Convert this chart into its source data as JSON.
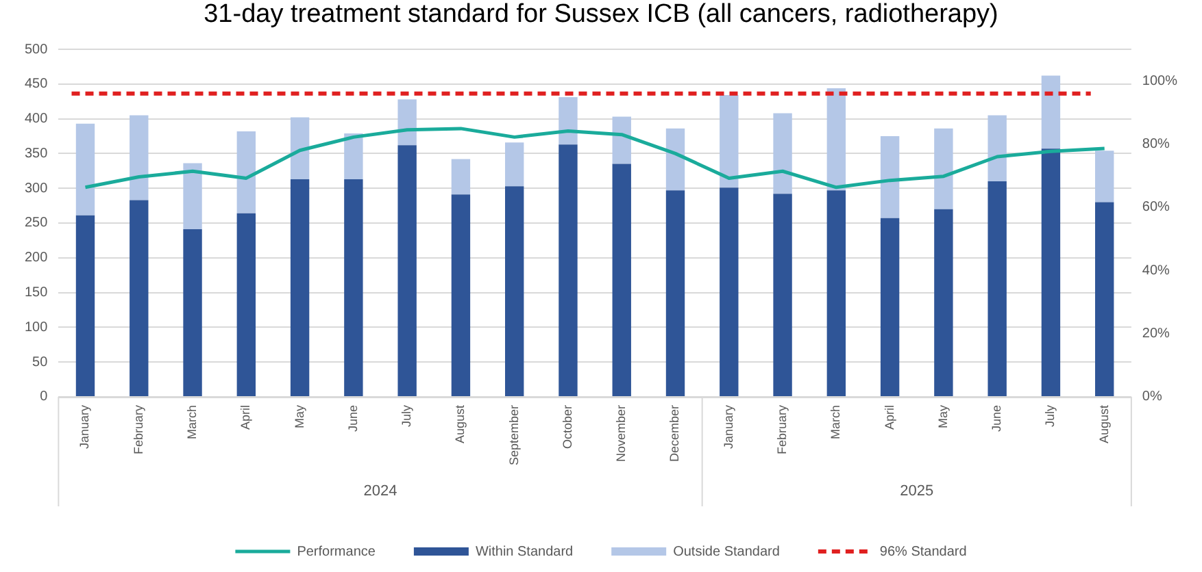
{
  "chart_data": {
    "type": "bar",
    "title": "31-day treatment standard for Sussex ICB (all cancers, radiotherapy)",
    "categories": [
      "January",
      "February",
      "March",
      "April",
      "May",
      "June",
      "July",
      "August",
      "September",
      "October",
      "November",
      "December",
      "January",
      "February",
      "March",
      "April",
      "May",
      "June",
      "July",
      "August"
    ],
    "stacked": true,
    "series": [
      {
        "name": "Within Standard",
        "color": "#2f5597",
        "values": [
          261,
          283,
          241,
          264,
          313,
          313,
          362,
          291,
          303,
          363,
          335,
          297,
          301,
          292,
          297,
          257,
          270,
          310,
          357,
          280
        ]
      },
      {
        "name": "Outside Standard",
        "color": "#b4c7e7",
        "values": [
          132,
          122,
          95,
          118,
          89,
          66,
          66,
          51,
          63,
          68,
          68,
          89,
          133,
          116,
          147,
          118,
          116,
          95,
          105,
          74
        ]
      },
      {
        "name": "Performance",
        "type": "line",
        "axis": "y2",
        "color": "#1aab9b",
        "marker": "none",
        "line_style": "solid",
        "values": [
          66.3,
          69.6,
          71.4,
          69.2,
          78,
          82.2,
          84.5,
          84.9,
          82.2,
          84.1,
          83,
          77,
          69.2,
          71.4,
          66.3,
          68.5,
          69.8,
          76,
          77.7,
          78.6
        ]
      }
    ],
    "ylim": [
      0,
      500
    ],
    "yticks": [
      0,
      50,
      100,
      150,
      200,
      250,
      300,
      350,
      400,
      450,
      500
    ],
    "y2lim": [
      0,
      110
    ],
    "y2ticks": [
      {
        "value": 0,
        "label": "0%"
      },
      {
        "value": 20,
        "label": "20%"
      },
      {
        "value": 40,
        "label": "40%"
      },
      {
        "value": 60,
        "label": "60%"
      },
      {
        "value": 80,
        "label": "80%"
      },
      {
        "value": 100,
        "label": "100%"
      }
    ],
    "ref_lines": [
      {
        "axis": "y2",
        "value": 96,
        "label": "96% Standard",
        "color": "#e02020",
        "line_style": "dashed"
      }
    ],
    "annotations": [
      "2024",
      "2025"
    ],
    "grid": "y",
    "legend": "bottom"
  }
}
